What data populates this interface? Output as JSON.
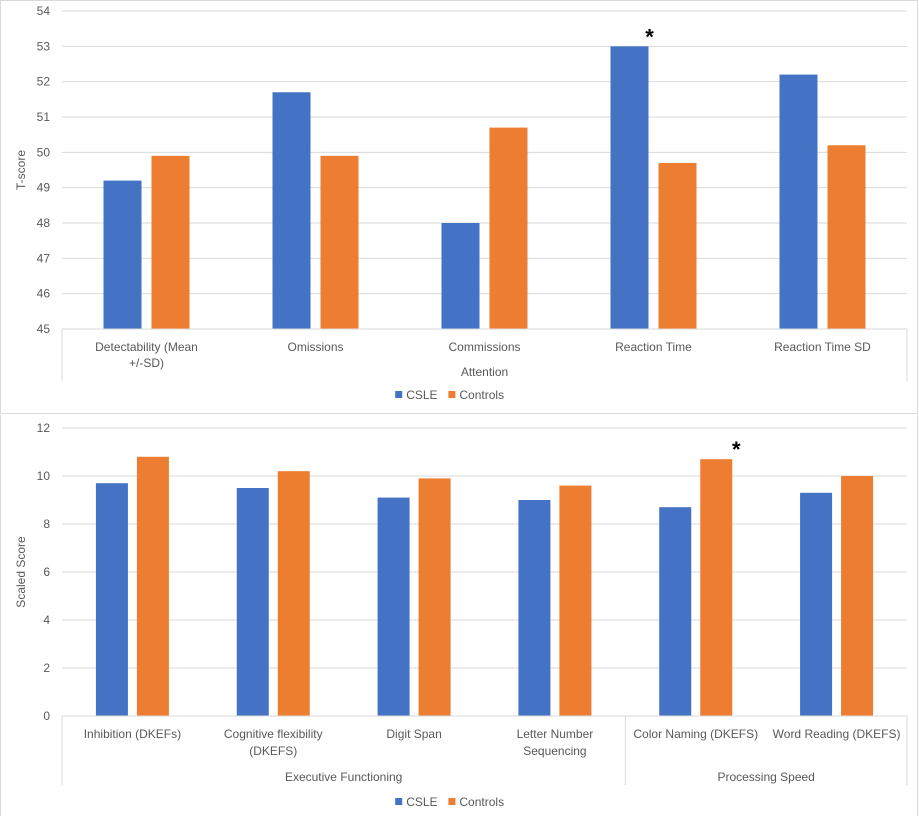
{
  "colors": {
    "csle": "#4472c4",
    "controls": "#ed7d31",
    "axis": "#d9d9d9",
    "text": "#595959"
  },
  "chart_data": [
    {
      "type": "bar",
      "ylabel": "T-score",
      "ylim": [
        45,
        54
      ],
      "yticks": [
        45,
        46,
        47,
        48,
        49,
        50,
        51,
        52,
        53,
        54
      ],
      "categories": [
        "Detectability (Mean +/-SD)",
        "Omissions",
        "Commissions",
        "Reaction Time",
        "Reaction Time SD"
      ],
      "groups": [
        {
          "label": "Attention",
          "count": 5
        }
      ],
      "series": [
        {
          "name": "CSLE",
          "values": [
            49.2,
            51.7,
            48.0,
            53.0,
            52.2
          ]
        },
        {
          "name": "Controls",
          "values": [
            49.9,
            49.9,
            50.7,
            49.7,
            50.2
          ]
        }
      ],
      "annotations": [
        {
          "category": "Reaction Time",
          "text": "*"
        }
      ],
      "grid": true,
      "legend": "bottom"
    },
    {
      "type": "bar",
      "ylabel": "Scaled Score",
      "ylim": [
        0,
        12
      ],
      "yticks": [
        0,
        2,
        4,
        6,
        8,
        10,
        12
      ],
      "categories": [
        "Inhibition (DKEFs)",
        "Cognitive flexibility (DKEFS)",
        "Digit Span",
        "Letter Number Sequencing",
        "Color Naming (DKEFS)",
        "Word Reading (DKEFS)"
      ],
      "groups": [
        {
          "label": "Executive Functioning",
          "count": 4
        },
        {
          "label": "Processing Speed",
          "count": 2
        }
      ],
      "series": [
        {
          "name": "CSLE",
          "values": [
            9.7,
            9.5,
            9.1,
            9.0,
            8.7,
            9.3
          ]
        },
        {
          "name": "Controls",
          "values": [
            10.8,
            10.2,
            9.9,
            9.6,
            10.7,
            10.0
          ]
        }
      ],
      "annotations": [
        {
          "category": "Color Naming (DKEFS)",
          "text": "*"
        }
      ],
      "grid": true,
      "legend": "bottom"
    }
  ]
}
